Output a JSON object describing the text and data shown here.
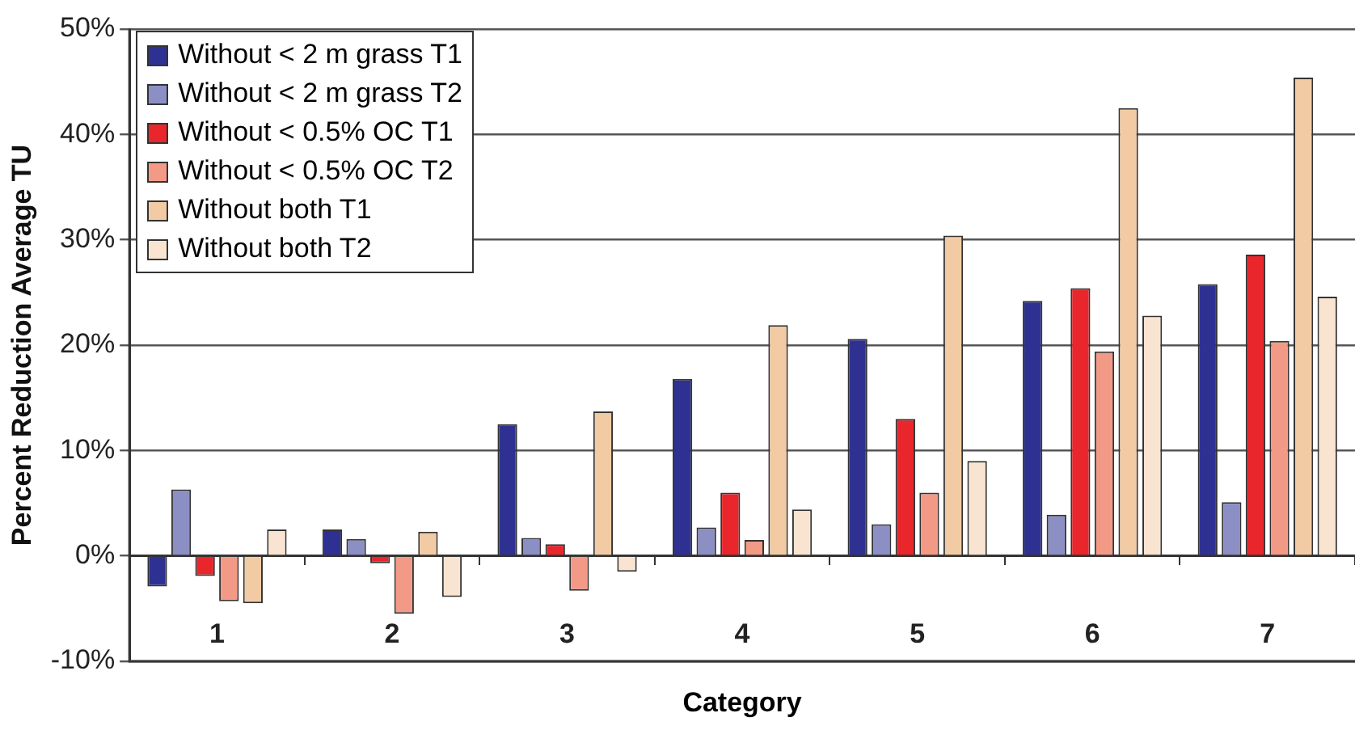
{
  "chart_data": {
    "type": "bar",
    "xlabel": "Category",
    "ylabel": "Percent Reduction Average TU",
    "categories": [
      "1",
      "2",
      "3",
      "4",
      "5",
      "6",
      "7"
    ],
    "series": [
      {
        "name": "Without < 2 m grass T1",
        "color": "#2e3192",
        "values": [
          -2.9,
          2.5,
          12.5,
          16.8,
          20.6,
          24.2,
          25.8
        ]
      },
      {
        "name": "Without < 2 m grass T2",
        "color": "#8c8fc4",
        "values": [
          6.3,
          1.6,
          1.7,
          2.7,
          3.0,
          3.9,
          5.1
        ]
      },
      {
        "name": "Without < 0.5% OC T1",
        "color": "#e8262b",
        "values": [
          -1.9,
          -0.7,
          1.1,
          6.0,
          13.0,
          25.4,
          28.6
        ]
      },
      {
        "name": "Without < 0.5% OC T2",
        "color": "#f39a86",
        "values": [
          -4.3,
          -5.5,
          -3.3,
          1.5,
          6.0,
          19.4,
          20.4
        ]
      },
      {
        "name": "Without both T1",
        "color": "#f2cba4",
        "values": [
          -4.5,
          2.3,
          13.7,
          21.9,
          30.4,
          42.5,
          45.4
        ]
      },
      {
        "name": "Without both T2",
        "color": "#f9e4d1",
        "values": [
          2.5,
          -3.9,
          -1.5,
          4.4,
          9.0,
          22.8,
          24.6
        ]
      }
    ],
    "ylim": [
      -10,
      50
    ],
    "yticks": [
      {
        "value": -10,
        "label": "-10%"
      },
      {
        "value": 0,
        "label": "0%"
      },
      {
        "value": 10,
        "label": "10%"
      },
      {
        "value": 20,
        "label": "20%"
      },
      {
        "value": 30,
        "label": "30%"
      },
      {
        "value": 40,
        "label": "40%"
      },
      {
        "value": 50,
        "label": "50%"
      }
    ],
    "grid": "y",
    "legend": "top left"
  }
}
